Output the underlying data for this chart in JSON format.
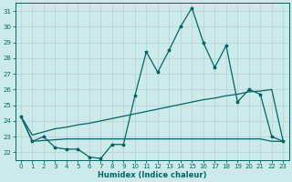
{
  "xlabel": "Humidex (Indice chaleur)",
  "background_color": "#cdeaea",
  "grid_color": "#b8d4d4",
  "line_color": "#006666",
  "xlim": [
    -0.5,
    23.5
  ],
  "ylim": [
    21.5,
    31.5
  ],
  "yticks": [
    22,
    23,
    24,
    25,
    26,
    27,
    28,
    29,
    30,
    31
  ],
  "xticks": [
    0,
    1,
    2,
    3,
    4,
    5,
    6,
    7,
    8,
    9,
    10,
    11,
    12,
    13,
    14,
    15,
    16,
    17,
    18,
    19,
    20,
    21,
    22,
    23
  ],
  "line1_x": [
    0,
    1,
    2,
    3,
    4,
    5,
    6,
    7,
    8,
    9,
    10,
    11,
    12,
    13,
    14,
    15,
    16,
    17,
    18,
    19,
    20,
    21,
    22,
    23
  ],
  "line1_y": [
    24.3,
    22.7,
    23.0,
    22.3,
    22.2,
    22.2,
    21.7,
    21.6,
    22.5,
    22.5,
    25.6,
    28.4,
    27.1,
    28.5,
    30.0,
    31.2,
    29.0,
    27.4,
    28.8,
    25.2,
    26.0,
    25.7,
    23.0,
    22.7
  ],
  "line2_x": [
    0,
    1,
    2,
    3,
    4,
    5,
    6,
    7,
    8,
    9,
    10,
    11,
    12,
    13,
    14,
    15,
    16,
    17,
    18,
    19,
    20,
    21,
    22,
    23
  ],
  "line2_y": [
    24.3,
    23.1,
    23.3,
    23.5,
    23.6,
    23.75,
    23.85,
    24.0,
    24.15,
    24.3,
    24.45,
    24.6,
    24.75,
    24.9,
    25.05,
    25.2,
    25.35,
    25.45,
    25.6,
    25.7,
    25.85,
    25.9,
    26.0,
    22.7
  ],
  "line3_x": [
    0,
    1,
    2,
    3,
    4,
    5,
    6,
    7,
    8,
    9,
    10,
    11,
    12,
    13,
    14,
    15,
    16,
    17,
    18,
    19,
    20,
    21,
    22,
    23
  ],
  "line3_y": [
    24.3,
    22.7,
    22.75,
    22.8,
    22.85,
    22.85,
    22.85,
    22.85,
    22.85,
    22.85,
    22.85,
    22.85,
    22.85,
    22.85,
    22.85,
    22.85,
    22.85,
    22.85,
    22.85,
    22.85,
    22.85,
    22.85,
    22.7,
    22.7
  ]
}
